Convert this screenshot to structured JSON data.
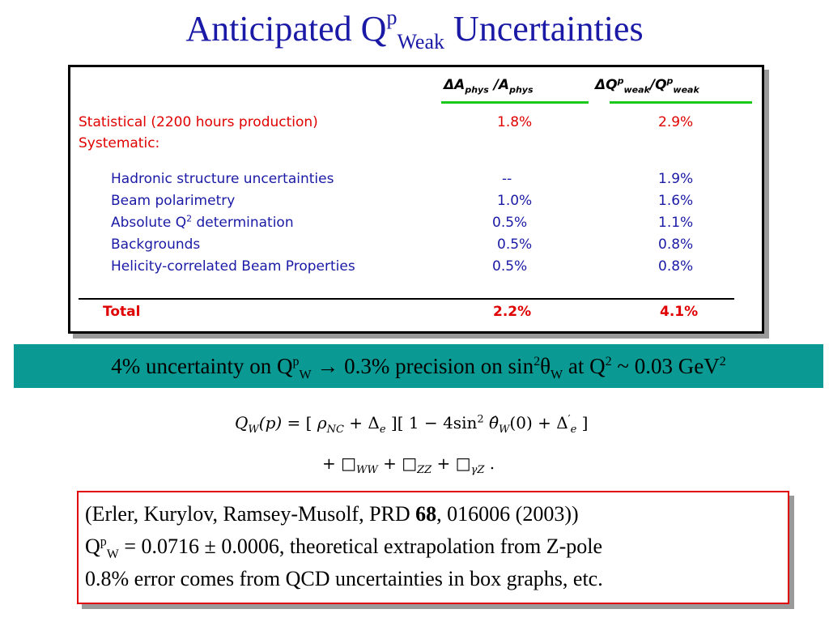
{
  "slide": {
    "title_main": "Anticipated Q",
    "title_sup": "p",
    "title_sub": "Weak",
    "title_end": " Uncertainties"
  },
  "table": {
    "col1_header": {
      "delta": "Δ",
      "a": "A",
      "sub1": "phys",
      "slash": " /A",
      "sub2": "phys"
    },
    "col2_header": {
      "delta": "Δ",
      "q": "Q",
      "sup1": "p",
      "sub1": "weak",
      "slash": "/Q",
      "sup2": "p",
      "sub2": "weak"
    },
    "statistical": {
      "label": "Statistical (2200 hours production)",
      "col1": "1.8%",
      "col2": "2.9%"
    },
    "systematic_label": "Systematic:",
    "rows": [
      {
        "label": "Hadronic structure uncertainties",
        "col1": "--",
        "col2": "1.9%"
      },
      {
        "label": "Beam polarimetry",
        "col1": "1.0%",
        "col2": "1.6%"
      },
      {
        "label_pre": "Absolute Q",
        "label_sup": "2",
        "label_post": " determination",
        "col1": "0.5%",
        "col2": "1.1%"
      },
      {
        "label": "Backgrounds",
        "col1": "0.5%",
        "col2": "0.8%"
      },
      {
        "label": "Helicity-correlated Beam Properties",
        "col1": "0.5%",
        "col2": "0.8%"
      }
    ],
    "total": {
      "label": "Total",
      "col1": "2.2%",
      "col2": "4.1%"
    }
  },
  "banner": {
    "p1": "4% uncertainty on Q",
    "sup1": "p",
    "sub1": "W",
    "p2": " → 0.3% precision on sin",
    "sup2": "2",
    "theta": "θ",
    "sub2": "W",
    "p3": " at Q",
    "sup3": "2",
    "p4": " ~ 0.03 GeV",
    "sup4": "2"
  },
  "formula": {
    "line1": {
      "q": "Q",
      "q_sub": "W",
      "p_arg": "(p)",
      "eq": " = [ ",
      "rho": "ρ",
      "rho_sub": "NC",
      "plus1": " + Δ",
      "delta_sub": "e",
      "mid": " ][ 1 − 4sin",
      "sin_sup": "2",
      "theta": " θ̂",
      "theta_sub": "W",
      "zero": "(0) + Δ",
      "delta2_sup": "′",
      "delta2_sub": "e",
      "end": " ]"
    },
    "line2": {
      "plus1": "+ □",
      "sub1": "WW",
      "plus2": " + □",
      "sub2": "ZZ",
      "plus3": " + □",
      "sub3": "γZ",
      "dot": " ."
    }
  },
  "reference": {
    "line1_pre": "(Erler, Kurylov, Ramsey-Musolf, PRD ",
    "line1_bold": "68",
    "line1_post": ", 016006 (2003))",
    "line2_q": " Q",
    "line2_sup": "p",
    "line2_sub": "W",
    "line2_post": " = 0.0716 ± 0.0006, theoretical extrapolation from Z-pole",
    "line3": "0.8% error comes from QCD uncertainties in box graphs, etc."
  },
  "colors": {
    "title": "#1a1aa6",
    "statistical_text": "#e00000",
    "table_text": "#1a1aa6",
    "header_underline": "#19c819",
    "banner_bg": "#0a9a93",
    "ref_border": "#e00000"
  }
}
